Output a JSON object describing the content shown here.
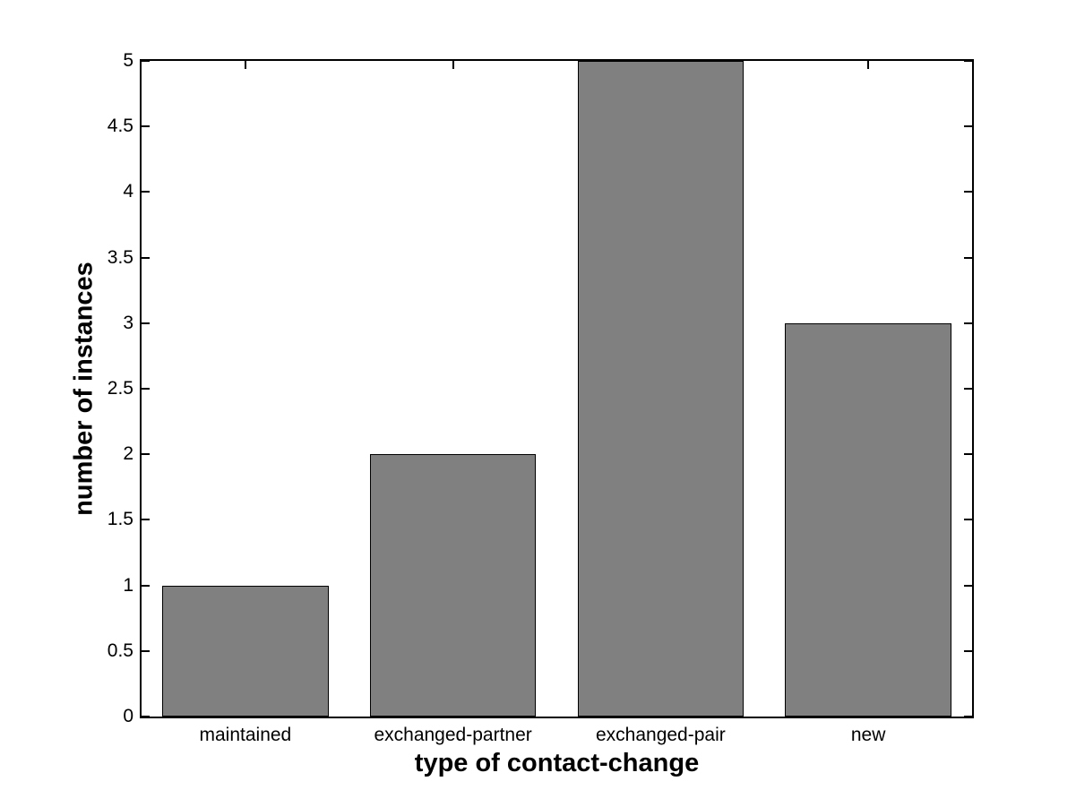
{
  "figure": {
    "background": "#ffffff"
  },
  "chart_data": {
    "type": "bar",
    "title": "",
    "categories": [
      "maintained",
      "exchanged-partner",
      "exchanged-pair",
      "new"
    ],
    "values": [
      1,
      2,
      5,
      3
    ],
    "xlabel": "type of contact-change",
    "ylabel": "number of instances",
    "ylim": [
      0,
      5
    ],
    "yticks": [
      0,
      0.5,
      1,
      1.5,
      2,
      2.5,
      3,
      3.5,
      4,
      4.5,
      5
    ],
    "ytick_labels": [
      "0",
      "0.5",
      "1",
      "1.5",
      "2",
      "2.5",
      "3",
      "3.5",
      "4",
      "4.5",
      "5"
    ],
    "bar_width_fraction": 0.8,
    "grid": false,
    "legend": "none",
    "colors": {
      "bar_fill": "#808080",
      "bar_edge": "#000000",
      "axis": "#000000",
      "text": "#000000",
      "background": "#ffffff"
    }
  }
}
